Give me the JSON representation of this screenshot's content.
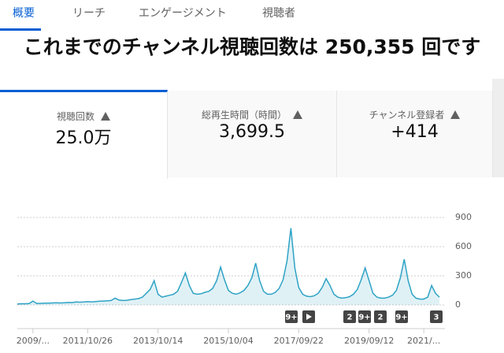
{
  "tabs": [
    "概要",
    "リーチ",
    "エンゲージメント",
    "視聴者"
  ],
  "headline": "これまでのチャンネル視聴回数は 250,355 回です",
  "metrics": [
    {
      "label": "視聴回数",
      "value": "25.0万"
    },
    {
      "label": "総再生時間（時間）",
      "value": "3,699.5"
    },
    {
      "label": "チャンネル登録者",
      "value": "+414"
    }
  ],
  "chart_data": {
    "type": "line",
    "categories": [
      null,
      null,
      null,
      null,
      "2009/...",
      null,
      null,
      null,
      null,
      null,
      null,
      null,
      null,
      null,
      null,
      null,
      null,
      null,
      "2011/10/26",
      null,
      null,
      null,
      null,
      null,
      null,
      null,
      null,
      null,
      null,
      null,
      null,
      null,
      null,
      null,
      null,
      null,
      "2013/10/14",
      null,
      null,
      null,
      null,
      null,
      null,
      null,
      null,
      null,
      null,
      null,
      null,
      null,
      null,
      null,
      null,
      null,
      "2015/10/04",
      null,
      null,
      null,
      null,
      null,
      null,
      null,
      null,
      null,
      null,
      null,
      null,
      null,
      null,
      null,
      null,
      null,
      "2017/09/22",
      null,
      null,
      null,
      null,
      null,
      null,
      null,
      null,
      null,
      null,
      null,
      null,
      null,
      null,
      null,
      null,
      null,
      "2019/09/12",
      null,
      null,
      null,
      null,
      null,
      null,
      null,
      null,
      null,
      null,
      null,
      null,
      null,
      "2021/...",
      null,
      null,
      null,
      null
    ],
    "series": [
      {
        "color": "#2ea3c5",
        "values": [
          10,
          12,
          12,
          14,
          40,
          15,
          16,
          18,
          18,
          20,
          22,
          20,
          22,
          25,
          24,
          30,
          28,
          30,
          35,
          32,
          35,
          38,
          40,
          42,
          45,
          70,
          50,
          45,
          48,
          55,
          60,
          65,
          80,
          120,
          160,
          250,
          110,
          80,
          90,
          100,
          110,
          140,
          230,
          330,
          200,
          120,
          110,
          115,
          130,
          140,
          170,
          250,
          390,
          260,
          150,
          120,
          110,
          125,
          150,
          200,
          280,
          430,
          250,
          140,
          110,
          110,
          130,
          170,
          260,
          450,
          790,
          380,
          180,
          110,
          90,
          85,
          95,
          120,
          180,
          270,
          200,
          110,
          80,
          70,
          75,
          85,
          110,
          160,
          260,
          380,
          250,
          120,
          80,
          70,
          70,
          80,
          100,
          150,
          280,
          470,
          250,
          110,
          70,
          60,
          60,
          80,
          200,
          120,
          80
        ]
      }
    ],
    "ylim": [
      0,
      900
    ],
    "yticks": [
      0,
      300,
      600,
      900
    ],
    "grid": true
  },
  "markers": [
    "9+",
    "2",
    "9+",
    "2",
    "9+",
    "3"
  ]
}
